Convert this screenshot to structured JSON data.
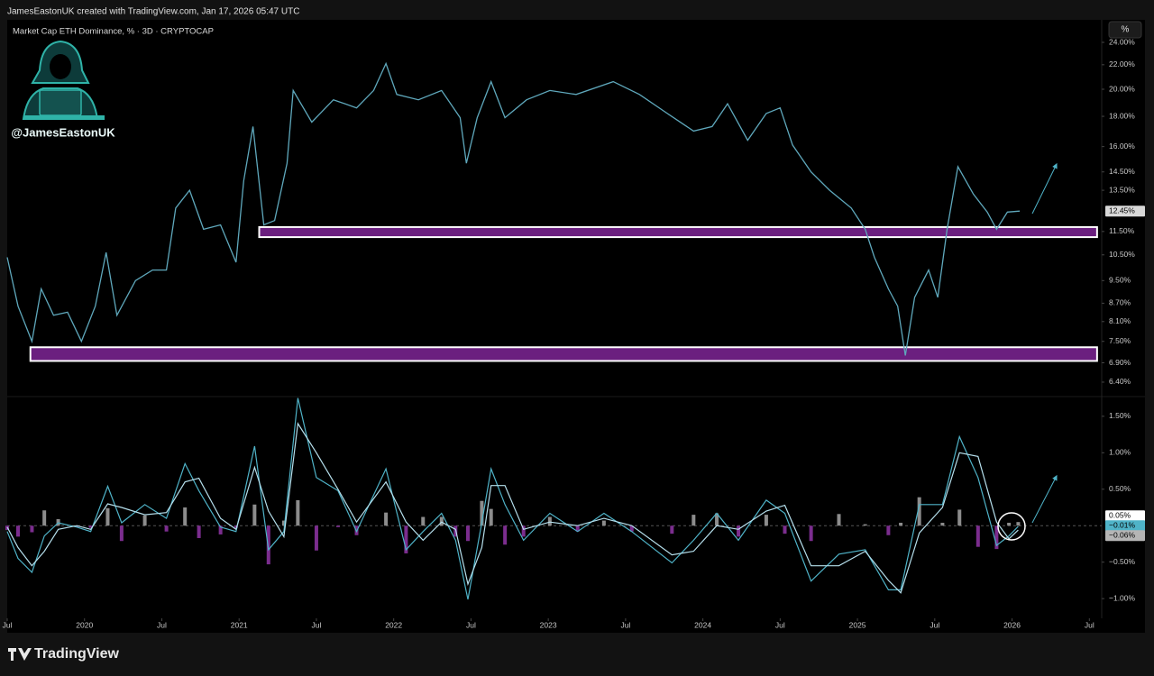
{
  "header": {
    "author_note": "JamesEastonUK created with TradingView.com, Jan 17, 2026 05:47 UTC",
    "symbol": "Market Cap ETH Dominance, % · 3D · CRYPTOCAP",
    "watermark": "@JamesEastonUK",
    "scale_button": "%"
  },
  "footer": {
    "brand": "TradingView"
  },
  "chart_data": [
    {
      "type": "line",
      "log_scale": true,
      "color": "#5fa8bc",
      "x": [
        2019.5,
        2019.57,
        2019.66,
        2019.72,
        2019.8,
        2019.89,
        2019.98,
        2020.07,
        2020.14,
        2020.21,
        2020.33,
        2020.44,
        2020.53,
        2020.59,
        2020.68,
        2020.77,
        2020.88,
        2020.98,
        2021.03,
        2021.09,
        2021.16,
        2021.23,
        2021.31,
        2021.35,
        2021.47,
        2021.61,
        2021.76,
        2021.87,
        2021.95,
        2022.02,
        2022.16,
        2022.31,
        2022.43,
        2022.47,
        2022.54,
        2022.63,
        2022.72,
        2022.86,
        2023.01,
        2023.18,
        2023.42,
        2023.59,
        2023.77,
        2023.94,
        2024.06,
        2024.16,
        2024.29,
        2024.41,
        2024.5,
        2024.58,
        2024.7,
        2024.82,
        2024.96,
        2025.05,
        2025.11,
        2025.2,
        2025.26,
        2025.31,
        2025.37,
        2025.46,
        2025.52,
        2025.58,
        2025.65,
        2025.75,
        2025.84,
        2025.9,
        2025.97,
        2026.05
      ],
      "values": [
        10.4,
        8.6,
        7.5,
        9.2,
        8.3,
        8.4,
        7.5,
        8.6,
        10.6,
        8.3,
        9.5,
        9.9,
        9.9,
        12.6,
        13.5,
        11.6,
        11.8,
        10.2,
        14.0,
        17.3,
        11.8,
        12.0,
        15.0,
        19.9,
        17.6,
        19.2,
        18.6,
        19.9,
        22.1,
        19.6,
        19.2,
        19.9,
        17.9,
        15.0,
        17.9,
        20.6,
        17.9,
        19.2,
        19.9,
        19.6,
        20.6,
        19.6,
        18.2,
        17.0,
        17.3,
        18.9,
        16.4,
        18.2,
        18.6,
        16.1,
        14.5,
        13.5,
        12.6,
        11.6,
        10.4,
        9.2,
        8.6,
        7.1,
        8.9,
        9.9,
        8.9,
        11.6,
        14.8,
        13.3,
        12.4,
        11.6,
        12.4,
        12.45
      ],
      "last_value": {
        "value": 12.45,
        "label": "12.45%"
      },
      "zones": [
        {
          "x": [
            2021.13,
            2026.55
          ],
          "y": [
            11.25,
            11.7
          ]
        },
        {
          "x": [
            2019.65,
            2026.55
          ],
          "y": [
            6.95,
            7.33
          ]
        }
      ],
      "zone_color": "#6b1f7f",
      "xlim": [
        2019.5,
        2026.58
      ],
      "ylim": [
        6.05,
        26.2
      ],
      "yticks": [
        {
          "value": 24,
          "label": "24.00%"
        },
        {
          "value": 22,
          "label": "22.00%"
        },
        {
          "value": 20,
          "label": "20.00%"
        },
        {
          "value": 18,
          "label": "18.00%"
        },
        {
          "value": 16,
          "label": "16.00%"
        },
        {
          "value": 14.5,
          "label": "14.50%"
        },
        {
          "value": 13.5,
          "label": "13.50%"
        },
        {
          "value": 11.5,
          "label": "11.50%"
        },
        {
          "value": 10.5,
          "label": "10.50%"
        },
        {
          "value": 9.5,
          "label": "9.50%"
        },
        {
          "value": 8.7,
          "label": "8.70%"
        },
        {
          "value": 8.1,
          "label": "8.10%"
        },
        {
          "value": 7.5,
          "label": "7.50%"
        },
        {
          "value": 6.9,
          "label": "6.90%"
        },
        {
          "value": 6.4,
          "label": "6.40%"
        }
      ]
    },
    {
      "type": "macd",
      "x": [
        2019.5,
        2019.57,
        2019.66,
        2019.74,
        2019.83,
        2019.95,
        2020.04,
        2020.15,
        2020.24,
        2020.39,
        2020.53,
        2020.65,
        2020.74,
        2020.88,
        2020.98,
        2021.1,
        2021.19,
        2021.29,
        2021.38,
        2021.5,
        2021.64,
        2021.76,
        2021.95,
        2022.08,
        2022.19,
        2022.31,
        2022.4,
        2022.48,
        2022.57,
        2022.63,
        2022.72,
        2022.84,
        2023.01,
        2023.19,
        2023.36,
        2023.54,
        2023.8,
        2023.94,
        2024.09,
        2024.23,
        2024.41,
        2024.53,
        2024.7,
        2024.88,
        2025.05,
        2025.2,
        2025.28,
        2025.4,
        2025.55,
        2025.66,
        2025.78,
        2025.9,
        2025.98,
        2026.04
      ],
      "series": [
        {
          "color": "#4fb3c8",
          "values": [
            -0.08,
            -0.45,
            -0.64,
            -0.14,
            0.04,
            -0.02,
            -0.08,
            0.54,
            0.04,
            0.29,
            0.1,
            0.85,
            0.48,
            -0.02,
            -0.08,
            1.09,
            -0.33,
            -0.08,
            1.75,
            0.66,
            0.48,
            -0.08,
            0.78,
            -0.33,
            -0.08,
            0.17,
            -0.2,
            -1.01,
            0.04,
            0.78,
            0.29,
            -0.2,
            0.17,
            -0.08,
            0.17,
            -0.08,
            -0.51,
            -0.2,
            0.17,
            -0.2,
            0.35,
            0.17,
            -0.76,
            -0.39,
            -0.33,
            -0.88,
            -0.88,
            0.29,
            0.29,
            1.22,
            0.66,
            -0.27,
            -0.14,
            -0.01
          ]
        },
        {
          "color": "#b5dfec",
          "values": [
            -0.02,
            -0.3,
            -0.55,
            -0.35,
            -0.05,
            0.0,
            -0.05,
            0.3,
            0.25,
            0.15,
            0.18,
            0.6,
            0.65,
            0.1,
            -0.05,
            0.8,
            0.2,
            -0.15,
            1.4,
            1.0,
            0.5,
            0.05,
            0.6,
            0.05,
            -0.2,
            0.05,
            -0.05,
            -0.8,
            -0.3,
            0.55,
            0.55,
            -0.05,
            0.05,
            0.0,
            0.1,
            0.0,
            -0.4,
            -0.35,
            0.0,
            -0.05,
            0.2,
            0.28,
            -0.55,
            -0.55,
            -0.35,
            -0.75,
            -0.92,
            -0.1,
            0.25,
            1.0,
            0.95,
            0.05,
            -0.18,
            -0.06
          ]
        }
      ],
      "histogram": {
        "positive_color": "#8c8c8c",
        "negative_color": "#7b2d8e",
        "values": [
          -0.06,
          -0.15,
          -0.09,
          0.21,
          0.09,
          -0.02,
          -0.03,
          0.24,
          -0.21,
          0.14,
          -0.08,
          0.25,
          -0.17,
          -0.12,
          -0.03,
          0.29,
          -0.53,
          0.07,
          0.35,
          -0.34,
          -0.02,
          -0.13,
          0.18,
          -0.38,
          0.12,
          0.12,
          -0.15,
          -0.21,
          0.34,
          0.23,
          -0.26,
          -0.15,
          0.12,
          -0.08,
          0.07,
          -0.08,
          -0.11,
          0.15,
          0.17,
          -0.15,
          0.15,
          -0.11,
          -0.21,
          0.16,
          0.02,
          -0.13,
          0.04,
          0.39,
          0.04,
          0.22,
          -0.29,
          -0.32,
          0.04,
          0.05
        ]
      },
      "last_values": [
        {
          "value": 0.05,
          "label": "0.05%",
          "color": "#ffffff",
          "text_color": "#000000"
        },
        {
          "value": -0.01,
          "label": "−0.01%",
          "color": "#4fb3c8",
          "text_color": "#000000"
        },
        {
          "value": -0.06,
          "label": "−0.06%",
          "color": "#b5b5b5",
          "text_color": "#000000"
        }
      ],
      "xlim": [
        2019.5,
        2026.58
      ],
      "ylim": [
        -1.27,
        1.77
      ],
      "yticks": [
        {
          "value": 1.5,
          "label": "1.50%"
        },
        {
          "value": 1,
          "label": "1.00%"
        },
        {
          "value": 0.5,
          "label": "0.50%"
        },
        {
          "value": -0.5,
          "label": "−0.50%"
        },
        {
          "value": -1,
          "label": "−1.00%"
        }
      ],
      "xticks": [
        {
          "value": 2019.5,
          "label": "Jul"
        },
        {
          "value": 2020,
          "label": "2020"
        },
        {
          "value": 2020.5,
          "label": "Jul"
        },
        {
          "value": 2021,
          "label": "2021"
        },
        {
          "value": 2021.5,
          "label": "Jul"
        },
        {
          "value": 2022,
          "label": "2022"
        },
        {
          "value": 2022.5,
          "label": "Jul"
        },
        {
          "value": 2023,
          "label": "2023"
        },
        {
          "value": 2023.5,
          "label": "Jul"
        },
        {
          "value": 2024,
          "label": "2024"
        },
        {
          "value": 2024.5,
          "label": "Jul"
        },
        {
          "value": 2025,
          "label": "2025"
        },
        {
          "value": 2025.5,
          "label": "Jul"
        },
        {
          "value": 2026,
          "label": "2026"
        },
        {
          "value": 2026.5,
          "label": "Jul"
        }
      ]
    }
  ]
}
